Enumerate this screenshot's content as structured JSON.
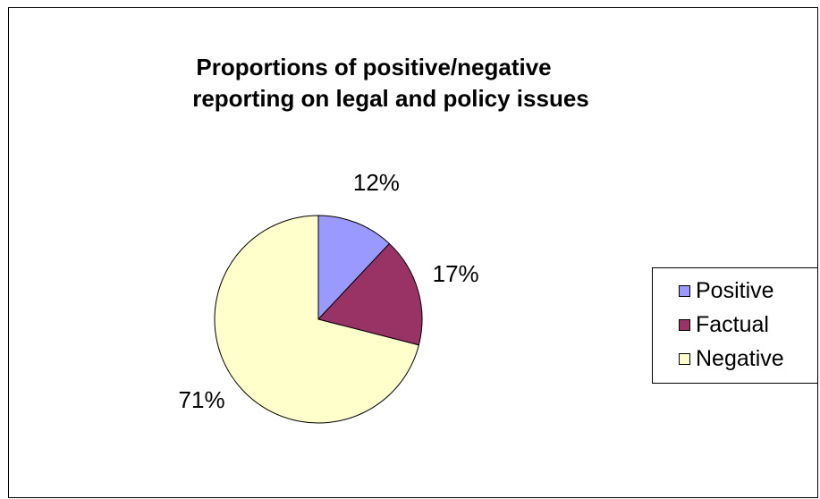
{
  "chart_data": {
    "type": "pie",
    "title_lines": [
      "Proportions of positive/negative",
      "reporting on legal and policy issues"
    ],
    "categories": [
      "Positive",
      "Factual",
      "Negative"
    ],
    "values": [
      12,
      17,
      71
    ],
    "labels": [
      "12%",
      "17%",
      "71%"
    ],
    "colors": [
      "#9999ff",
      "#993366",
      "#ffffcc"
    ],
    "legend_position": "right"
  }
}
